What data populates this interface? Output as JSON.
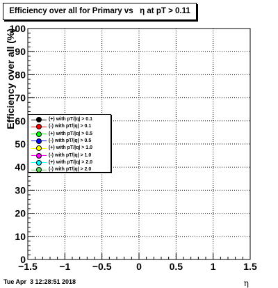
{
  "chart_data": {
    "type": "line",
    "title": "Efficiency over all for Primary vs   η at pT > 0.11",
    "xlabel": "η",
    "ylabel": "Efficiency over all (%)",
    "xlim": [
      -1.5,
      1.5
    ],
    "ylim": [
      0,
      100
    ],
    "x_ticks": [
      "−1.5",
      "−1",
      "−0.5",
      "0",
      "0.5",
      "1",
      "1.5"
    ],
    "y_ticks": [
      "0",
      "10",
      "20",
      "30",
      "40",
      "50",
      "60",
      "70",
      "80",
      "90",
      "100"
    ],
    "grid": true,
    "legend_position": "left-middle",
    "series": [
      {
        "name": "(+) with pT/|q| > 0.1",
        "color": "#000000",
        "x": [],
        "y": []
      },
      {
        "name": "(-) with pT/|q| > 0.1",
        "color": "#ff0000",
        "x": [],
        "y": []
      },
      {
        "name": "(+) with pT/|q| > 0.5",
        "color": "#00ff00",
        "x": [],
        "y": []
      },
      {
        "name": "(-) with pT/|q| > 0.5",
        "color": "#0000ff",
        "x": [],
        "y": []
      },
      {
        "name": "(+) with pT/|q| > 1.0",
        "color": "#ffff00",
        "x": [],
        "y": []
      },
      {
        "name": "(-) with pT/|q| > 1.0",
        "color": "#ff00ff",
        "x": [],
        "y": []
      },
      {
        "name": "(+) with pT/|q| > 2.0",
        "color": "#00ffff",
        "x": [],
        "y": []
      },
      {
        "name": "(-) with pT/|q| > 2.0",
        "color": "#5fd35f",
        "x": [],
        "y": []
      }
    ]
  },
  "footer": {
    "timestamp": "Tue Apr  3 12:28:51 2018"
  }
}
